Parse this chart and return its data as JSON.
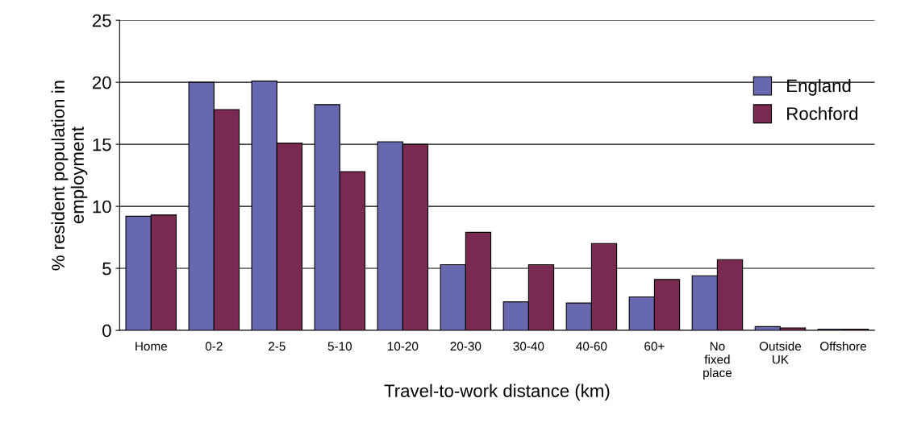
{
  "chart_data": {
    "type": "bar",
    "xlabel": "Travel-to-work distance (km)",
    "ylabel": "% resident population in\nemployment",
    "categories": [
      "Home",
      "0-2",
      "2-5",
      "5-10",
      "10-20",
      "20-30",
      "30-40",
      "40-60",
      "60+",
      "No\nfixed\nplace",
      "Outside\nUK",
      "Offshore"
    ],
    "series": [
      {
        "name": "England",
        "color": "#6868b0",
        "values": [
          9.2,
          20.0,
          20.1,
          18.2,
          15.2,
          5.3,
          2.3,
          2.2,
          2.7,
          4.4,
          0.3,
          0.1
        ]
      },
      {
        "name": "Rochford",
        "color": "#7a2a50",
        "values": [
          9.3,
          17.8,
          15.1,
          12.8,
          15.0,
          7.9,
          5.3,
          7.0,
          4.1,
          5.7,
          0.2,
          0.1
        ]
      }
    ],
    "ylim": [
      0,
      25
    ],
    "yticks": [
      0,
      5,
      10,
      15,
      20,
      25
    ],
    "grid": "y",
    "legend": "top right"
  }
}
